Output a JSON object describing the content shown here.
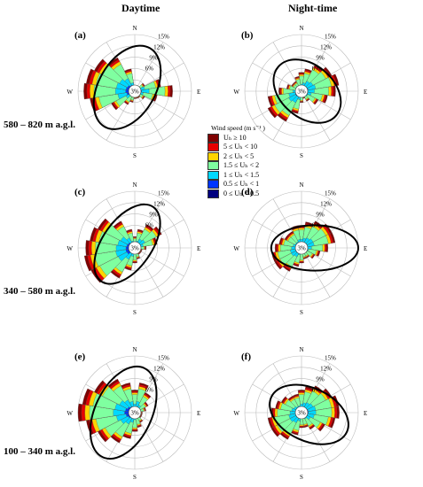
{
  "column_titles": [
    "Daytime",
    "Night-time"
  ],
  "row_labels": [
    "580 – 820 m a.g.l.",
    "340 – 580 m a.g.l.",
    "100 – 340 m a.g.l."
  ],
  "legend": {
    "title": "Wind speed (m s⁻¹ )",
    "items": [
      {
        "label": "Uₕ ≥ 10",
        "color": "#7f0000"
      },
      {
        "label": "5 ≤ Uₕ < 10",
        "color": "#e60000"
      },
      {
        "label": "2 ≤ Uₕ < 5",
        "color": "#ffd400"
      },
      {
        "label": "1.5 ≤ Uₕ < 2",
        "color": "#7fffa0"
      },
      {
        "label": "1 ≤ Uₕ < 1.5",
        "color": "#00d8ff"
      },
      {
        "label": "0.5 ≤ Uₕ < 1",
        "color": "#0035ff"
      },
      {
        "label": "0 ≤ Uₕ < 0.5",
        "color": "#00007f"
      }
    ]
  },
  "chart_data": [
    {
      "type": "polar-bar",
      "panel": "(a)",
      "row": 0,
      "col": 0,
      "directions": [
        "N",
        "E",
        "S",
        "W"
      ],
      "radial_ticks": [
        "3%",
        "6%",
        "9%",
        "12%",
        "15%"
      ],
      "center_label": "3%",
      "rmax": 15,
      "sectors": [
        0,
        0,
        1,
        3,
        7,
        10,
        6,
        3,
        2,
        2,
        2,
        3,
        4,
        7,
        12,
        13.5,
        13,
        12,
        10,
        6
      ],
      "ellipse": {
        "cx": -2,
        "cy": 1,
        "rx": 12,
        "ry": 7.5,
        "rot": -60
      }
    },
    {
      "type": "polar-bar",
      "panel": "(b)",
      "row": 0,
      "col": 1,
      "directions": [
        "N",
        "E",
        "S",
        "W"
      ],
      "radial_ticks": [
        "3%",
        "6%",
        "9%",
        "12%",
        "15%"
      ],
      "center_label": "3%",
      "rmax": 15,
      "sectors": [
        5,
        6,
        8,
        9,
        10,
        9,
        7,
        5,
        3,
        2,
        3,
        6,
        9,
        10,
        9,
        6,
        4,
        3,
        3,
        4
      ],
      "ellipse": {
        "cx": 1.5,
        "cy": 0,
        "rx": 10,
        "ry": 7,
        "rot": 40
      }
    },
    {
      "type": "polar-bar",
      "panel": "(c)",
      "row": 1,
      "col": 0,
      "directions": [
        "N",
        "E",
        "S",
        "W"
      ],
      "radial_ticks": [
        "3%",
        "6%",
        "9%",
        "12%",
        "15%"
      ],
      "center_label": "3%",
      "rmax": 15,
      "sectors": [
        3,
        5,
        7,
        8,
        6,
        3,
        2,
        2,
        2,
        3,
        4,
        6,
        9,
        13,
        13.5,
        13,
        12,
        11,
        8,
        5
      ],
      "ellipse": {
        "cx": -2,
        "cy": 1,
        "rx": 12,
        "ry": 6.5,
        "rot": -55
      }
    },
    {
      "type": "polar-bar",
      "panel": "(d)",
      "row": 1,
      "col": 1,
      "directions": [
        "N",
        "E",
        "S",
        "W"
      ],
      "radial_ticks": [
        "3%",
        "6%",
        "9%",
        "12%",
        "15%"
      ],
      "center_label": "3%",
      "rmax": 15,
      "sectors": [
        6,
        7,
        8,
        9,
        9,
        7,
        5,
        4,
        3,
        3,
        4,
        5,
        7,
        8,
        8,
        7,
        6,
        5,
        5,
        6
      ],
      "ellipse": {
        "cx": 3.5,
        "cy": 0,
        "rx": 11.5,
        "ry": 6,
        "rot": 0
      }
    },
    {
      "type": "polar-bar",
      "panel": "(e)",
      "row": 2,
      "col": 0,
      "directions": [
        "N",
        "E",
        "S",
        "W"
      ],
      "radial_ticks": [
        "3%",
        "6%",
        "9%",
        "12%",
        "15%"
      ],
      "center_label": "3%",
      "rmax": 15,
      "sectors": [
        6,
        8,
        6,
        4,
        3,
        2,
        2,
        2,
        3,
        4,
        5,
        7,
        9,
        11,
        13,
        15,
        14,
        12,
        10,
        8
      ],
      "ellipse": {
        "cx": -3,
        "cy": 0,
        "rx": 13,
        "ry": 7.5,
        "rot": -65
      }
    },
    {
      "type": "polar-bar",
      "panel": "(f)",
      "row": 2,
      "col": 1,
      "directions": [
        "N",
        "E",
        "S",
        "W"
      ],
      "radial_ticks": [
        "3%",
        "6%",
        "9%",
        "12%",
        "15%"
      ],
      "center_label": "3%",
      "rmax": 15,
      "sectors": [
        6,
        7,
        8,
        9,
        10,
        10,
        9,
        7,
        5,
        4,
        4,
        6,
        8,
        9,
        9,
        8,
        7,
        6,
        5,
        5
      ],
      "ellipse": {
        "cx": 2,
        "cy": -0.5,
        "rx": 11,
        "ry": 7,
        "rot": 25
      }
    }
  ]
}
